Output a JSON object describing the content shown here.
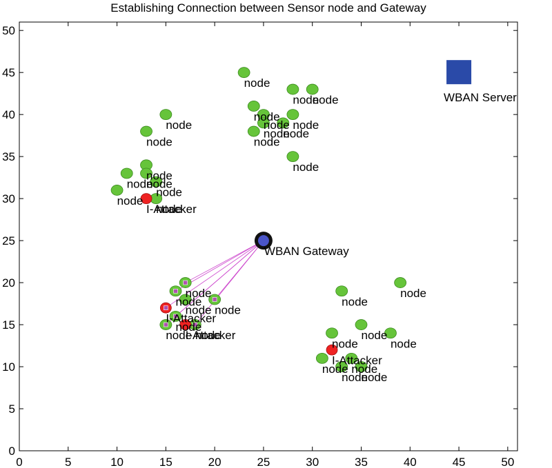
{
  "chart_data": {
    "type": "scatter",
    "title": "Establishing Connection between Sensor node and Gateway",
    "xlabel": "",
    "ylabel": "",
    "xlim": [
      0,
      51
    ],
    "ylim": [
      0,
      51
    ],
    "x_ticks": [
      0,
      5,
      10,
      15,
      20,
      25,
      30,
      35,
      40,
      45,
      50
    ],
    "y_ticks": [
      0,
      5,
      10,
      15,
      20,
      25,
      30,
      35,
      40,
      45,
      50
    ],
    "grid": false,
    "colors": {
      "node": "#66c43a",
      "attacker": "#ee2222",
      "server": "#2a4aa8",
      "gateway_ring": "#111111",
      "gateway_core": "#4a55c8",
      "link": "#cc44cc",
      "marker_square": "#b050b0"
    },
    "server": {
      "x": 45,
      "y": 45,
      "label": "WBAN Server"
    },
    "gateway": {
      "x": 25,
      "y": 25,
      "label": "WBAN Gateway"
    },
    "nodes": [
      {
        "x": 23,
        "y": 45,
        "label": "node"
      },
      {
        "x": 28,
        "y": 43,
        "label": "node"
      },
      {
        "x": 30,
        "y": 43,
        "label": "node"
      },
      {
        "x": 24,
        "y": 41,
        "label": "node"
      },
      {
        "x": 25,
        "y": 40,
        "label": "node"
      },
      {
        "x": 28,
        "y": 40,
        "label": "node"
      },
      {
        "x": 25,
        "y": 39,
        "label": "node"
      },
      {
        "x": 27,
        "y": 39,
        "label": "node"
      },
      {
        "x": 24,
        "y": 38,
        "label": "node"
      },
      {
        "x": 28,
        "y": 35,
        "label": "node"
      },
      {
        "x": 15,
        "y": 40,
        "label": "node"
      },
      {
        "x": 13,
        "y": 38,
        "label": "node"
      },
      {
        "x": 13,
        "y": 34,
        "label": "node"
      },
      {
        "x": 11,
        "y": 33,
        "label": "node"
      },
      {
        "x": 13,
        "y": 33,
        "label": "node"
      },
      {
        "x": 14,
        "y": 32,
        "label": "node"
      },
      {
        "x": 10,
        "y": 31,
        "label": "node"
      },
      {
        "x": 14,
        "y": 30,
        "label": "node"
      },
      {
        "x": 17,
        "y": 20,
        "label": "node"
      },
      {
        "x": 16,
        "y": 19,
        "label": "node"
      },
      {
        "x": 17,
        "y": 18,
        "label": "node"
      },
      {
        "x": 20,
        "y": 18,
        "label": "node"
      },
      {
        "x": 16,
        "y": 16,
        "label": "node"
      },
      {
        "x": 15,
        "y": 15,
        "label": "node"
      },
      {
        "x": 18,
        "y": 15,
        "label": "node"
      },
      {
        "x": 33,
        "y": 19,
        "label": "node"
      },
      {
        "x": 39,
        "y": 20,
        "label": "node"
      },
      {
        "x": 35,
        "y": 15,
        "label": "node"
      },
      {
        "x": 32,
        "y": 14,
        "label": "node"
      },
      {
        "x": 38,
        "y": 14,
        "label": "node"
      },
      {
        "x": 31,
        "y": 11,
        "label": "node"
      },
      {
        "x": 34,
        "y": 11,
        "label": "node"
      },
      {
        "x": 33,
        "y": 10,
        "label": "node"
      },
      {
        "x": 35,
        "y": 10,
        "label": "node"
      }
    ],
    "attackers": [
      {
        "x": 13,
        "y": 30,
        "label": "I-Attacker"
      },
      {
        "x": 15,
        "y": 17,
        "label": "I-Attacker"
      },
      {
        "x": 17,
        "y": 15,
        "label": "I-Attacker"
      },
      {
        "x": 32,
        "y": 12,
        "label": "I-Attacker"
      }
    ],
    "links": [
      {
        "x": 17,
        "y": 20
      },
      {
        "x": 16,
        "y": 19
      },
      {
        "x": 20,
        "y": 18
      },
      {
        "x": 15,
        "y": 17
      },
      {
        "x": 16,
        "y": 16
      },
      {
        "x": 15,
        "y": 15
      },
      {
        "x": 18,
        "y": 15
      }
    ]
  }
}
